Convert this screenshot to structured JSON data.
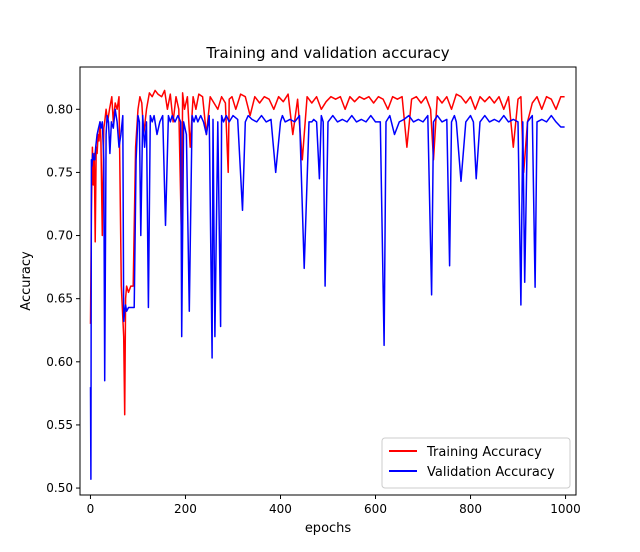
{
  "chart_data": {
    "type": "line",
    "title": "Training and validation accuracy",
    "xlabel": "epochs",
    "ylabel": "Accuracy",
    "xlim": [
      -22,
      1022
    ],
    "ylim": [
      0.4945,
      0.8335
    ],
    "xticks": [
      0,
      200,
      400,
      600,
      800,
      1000
    ],
    "yticks": [
      0.5,
      0.55,
      0.6,
      0.65,
      0.7,
      0.75,
      0.8
    ],
    "xtick_labels": [
      "0",
      "200",
      "400",
      "600",
      "800",
      "1000"
    ],
    "ytick_labels": [
      "0.50",
      "0.55",
      "0.60",
      "0.65",
      "0.70",
      "0.75",
      "0.80"
    ],
    "grid": false,
    "legend_position": "lower right",
    "series": [
      {
        "name": "Training Accuracy",
        "color": "#ff0000",
        "x": [
          0,
          2,
          4,
          6,
          8,
          10,
          12,
          14,
          16,
          18,
          20,
          22,
          25,
          28,
          30,
          33,
          36,
          40,
          45,
          48,
          52,
          56,
          60,
          65,
          70,
          72,
          74,
          76,
          80,
          85,
          90,
          95,
          100,
          104,
          108,
          112,
          118,
          124,
          130,
          136,
          142,
          150,
          156,
          162,
          168,
          174,
          180,
          186,
          192,
          194,
          198,
          204,
          210,
          216,
          222,
          228,
          236,
          244,
          252,
          260,
          268,
          276,
          284,
          290,
          292,
          298,
          306,
          316,
          326,
          336,
          346,
          356,
          366,
          376,
          386,
          396,
          406,
          416,
          426,
          436,
          446,
          456,
          466,
          476,
          486,
          496,
          506,
          516,
          526,
          536,
          546,
          556,
          566,
          576,
          586,
          596,
          606,
          616,
          626,
          636,
          646,
          656,
          666,
          676,
          686,
          696,
          706,
          716,
          722,
          730,
          740,
          750,
          760,
          770,
          780,
          790,
          800,
          810,
          820,
          830,
          840,
          850,
          860,
          870,
          880,
          890,
          900,
          906,
          912,
          920,
          930,
          940,
          950,
          960,
          970,
          980,
          990,
          998
        ],
        "values": [
          0.63,
          0.72,
          0.77,
          0.74,
          0.765,
          0.695,
          0.77,
          0.765,
          0.78,
          0.775,
          0.79,
          0.776,
          0.7,
          0.785,
          0.79,
          0.8,
          0.79,
          0.8,
          0.81,
          0.79,
          0.805,
          0.8,
          0.81,
          0.66,
          0.62,
          0.558,
          0.65,
          0.66,
          0.655,
          0.66,
          0.66,
          0.77,
          0.8,
          0.81,
          0.805,
          0.78,
          0.8,
          0.813,
          0.81,
          0.815,
          0.812,
          0.81,
          0.815,
          0.8,
          0.812,
          0.79,
          0.81,
          0.8,
          0.69,
          0.813,
          0.8,
          0.81,
          0.77,
          0.81,
          0.8,
          0.812,
          0.81,
          0.78,
          0.81,
          0.805,
          0.8,
          0.81,
          0.805,
          0.75,
          0.808,
          0.81,
          0.8,
          0.812,
          0.81,
          0.795,
          0.81,
          0.805,
          0.81,
          0.808,
          0.8,
          0.81,
          0.806,
          0.812,
          0.78,
          0.808,
          0.76,
          0.81,
          0.805,
          0.81,
          0.8,
          0.806,
          0.81,
          0.808,
          0.81,
          0.8,
          0.81,
          0.806,
          0.81,
          0.808,
          0.81,
          0.805,
          0.81,
          0.808,
          0.8,
          0.81,
          0.808,
          0.81,
          0.77,
          0.808,
          0.81,
          0.805,
          0.81,
          0.8,
          0.76,
          0.81,
          0.805,
          0.81,
          0.8,
          0.812,
          0.81,
          0.805,
          0.81,
          0.8,
          0.81,
          0.806,
          0.81,
          0.805,
          0.81,
          0.8,
          0.81,
          0.77,
          0.808,
          0.81,
          0.75,
          0.79,
          0.805,
          0.81,
          0.8,
          0.81,
          0.808,
          0.8,
          0.81,
          0.81
        ]
      },
      {
        "name": "Validation Accuracy",
        "color": "#0000ff",
        "x": [
          0,
          1,
          2,
          3,
          5,
          7,
          9,
          11,
          14,
          17,
          20,
          22,
          25,
          28,
          30,
          33,
          35,
          38,
          41,
          44,
          48,
          52,
          56,
          60,
          64,
          68,
          70,
          72,
          74,
          76,
          80,
          84,
          88,
          92,
          96,
          100,
          103,
          106,
          110,
          114,
          118,
          122,
          126,
          130,
          134,
          140,
          146,
          152,
          158,
          164,
          168,
          172,
          178,
          184,
          190,
          192,
          196,
          202,
          208,
          214,
          218,
          222,
          226,
          232,
          238,
          244,
          250,
          256,
          258,
          262,
          268,
          274,
          276,
          280,
          286,
          292,
          300,
          310,
          320,
          326,
          332,
          340,
          350,
          360,
          370,
          380,
          390,
          400,
          404,
          410,
          420,
          430,
          440,
          450,
          460,
          466,
          470,
          476,
          482,
          486,
          490,
          494,
          500,
          510,
          520,
          530,
          540,
          550,
          560,
          570,
          580,
          590,
          600,
          610,
          618,
          622,
          630,
          640,
          650,
          660,
          670,
          680,
          690,
          700,
          710,
          718,
          722,
          730,
          740,
          750,
          756,
          760,
          766,
          770,
          780,
          790,
          800,
          806,
          812,
          820,
          830,
          840,
          850,
          860,
          870,
          880,
          890,
          900,
          906,
          910,
          914,
          920,
          930,
          936,
          940,
          950,
          960,
          970,
          980,
          990,
          998
        ],
        "values": [
          0.58,
          0.507,
          0.76,
          0.755,
          0.765,
          0.76,
          0.76,
          0.77,
          0.78,
          0.785,
          0.79,
          0.785,
          0.79,
          0.76,
          0.585,
          0.78,
          0.795,
          0.79,
          0.765,
          0.79,
          0.785,
          0.8,
          0.79,
          0.77,
          0.78,
          0.795,
          0.632,
          0.64,
          0.645,
          0.64,
          0.643,
          0.643,
          0.643,
          0.643,
          0.76,
          0.795,
          0.79,
          0.7,
          0.795,
          0.77,
          0.79,
          0.643,
          0.795,
          0.79,
          0.795,
          0.78,
          0.79,
          0.795,
          0.708,
          0.795,
          0.79,
          0.795,
          0.79,
          0.795,
          0.79,
          0.62,
          0.79,
          0.78,
          0.64,
          0.795,
          0.79,
          0.795,
          0.79,
          0.795,
          0.79,
          0.78,
          0.795,
          0.603,
          0.792,
          0.62,
          0.79,
          0.628,
          0.795,
          0.79,
          0.795,
          0.79,
          0.795,
          0.792,
          0.72,
          0.79,
          0.795,
          0.792,
          0.79,
          0.795,
          0.79,
          0.792,
          0.75,
          0.79,
          0.795,
          0.79,
          0.792,
          0.79,
          0.795,
          0.674,
          0.79,
          0.79,
          0.792,
          0.79,
          0.745,
          0.795,
          0.79,
          0.66,
          0.79,
          0.795,
          0.79,
          0.792,
          0.79,
          0.795,
          0.79,
          0.792,
          0.79,
          0.795,
          0.79,
          0.79,
          0.613,
          0.79,
          0.795,
          0.78,
          0.79,
          0.792,
          0.795,
          0.79,
          0.792,
          0.79,
          0.795,
          0.653,
          0.79,
          0.795,
          0.79,
          0.792,
          0.676,
          0.79,
          0.795,
          0.79,
          0.743,
          0.79,
          0.795,
          0.79,
          0.745,
          0.79,
          0.795,
          0.79,
          0.792,
          0.79,
          0.795,
          0.79,
          0.792,
          0.79,
          0.645,
          0.79,
          0.663,
          0.79,
          0.795,
          0.659,
          0.79,
          0.792,
          0.79,
          0.795,
          0.79,
          0.786,
          0.786
        ]
      }
    ]
  }
}
